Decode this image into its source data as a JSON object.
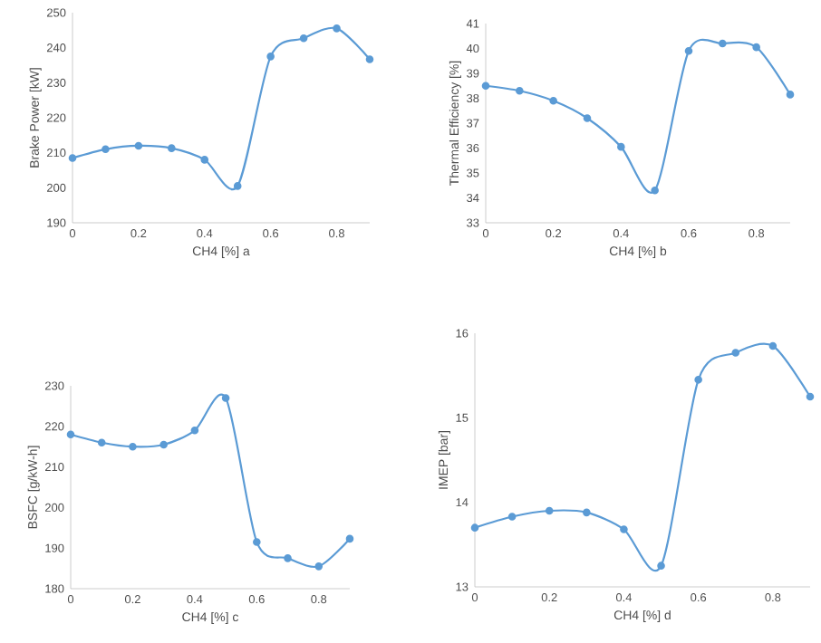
{
  "chart_data": [
    {
      "type": "line",
      "xlabel": "CH4 [%] a",
      "ylabel": "Brake Power [kW]",
      "x": [
        0,
        0.1,
        0.2,
        0.3,
        0.4,
        0.5,
        0.6,
        0.7,
        0.8,
        0.9
      ],
      "values": [
        208.5,
        211,
        212,
        211.3,
        208,
        200.5,
        237.5,
        242.7,
        245.5,
        236.7
      ],
      "color": "#5b9bd5",
      "xlim": [
        0,
        0.9
      ],
      "xticks": [
        0,
        0.2,
        0.4,
        0.6,
        0.8
      ],
      "ylim": [
        190,
        250
      ],
      "yticks": [
        190,
        200,
        210,
        220,
        230,
        240,
        250
      ],
      "marker": "circle",
      "line_style": "solid"
    },
    {
      "type": "line",
      "xlabel": "CH4 [%] b",
      "ylabel": "Thermal Efficiency [%]",
      "x": [
        0,
        0.1,
        0.2,
        0.3,
        0.4,
        0.5,
        0.6,
        0.7,
        0.8,
        0.9
      ],
      "values": [
        38.5,
        38.3,
        37.9,
        37.2,
        36.05,
        34.3,
        39.9,
        40.2,
        40.05,
        38.15
      ],
      "color": "#5b9bd5",
      "xlim": [
        0,
        0.9
      ],
      "xticks": [
        0,
        0.2,
        0.4,
        0.6,
        0.8
      ],
      "ylim": [
        33,
        41
      ],
      "yticks": [
        33,
        34,
        35,
        36,
        37,
        38,
        39,
        40,
        41
      ],
      "marker": "circle",
      "line_style": "solid"
    },
    {
      "type": "line",
      "xlabel": "CH4 [%] c",
      "ylabel": "BSFC [g/kW-h]",
      "x": [
        0,
        0.1,
        0.2,
        0.3,
        0.4,
        0.5,
        0.6,
        0.7,
        0.8,
        0.9
      ],
      "values": [
        218,
        216,
        215,
        215.5,
        219,
        227,
        191.5,
        187.5,
        185.5,
        192.3
      ],
      "color": "#5b9bd5",
      "xlim": [
        0,
        0.9
      ],
      "xticks": [
        0,
        0.2,
        0.4,
        0.6,
        0.8
      ],
      "ylim": [
        180,
        230
      ],
      "yticks": [
        180,
        190,
        200,
        210,
        220,
        230
      ],
      "marker": "circle",
      "line_style": "solid"
    },
    {
      "type": "line",
      "xlabel": "CH4 [%] d",
      "ylabel": "IMEP [bar]",
      "x": [
        0,
        0.1,
        0.2,
        0.3,
        0.4,
        0.5,
        0.6,
        0.7,
        0.8,
        0.9
      ],
      "values": [
        13.7,
        13.83,
        13.9,
        13.88,
        13.68,
        13.25,
        15.45,
        15.77,
        15.85,
        15.25
      ],
      "color": "#5b9bd5",
      "xlim": [
        0,
        0.9
      ],
      "xticks": [
        0,
        0.2,
        0.4,
        0.6,
        0.8
      ],
      "ylim": [
        13,
        16
      ],
      "yticks": [
        13,
        14,
        15,
        16
      ],
      "marker": "circle",
      "line_style": "solid"
    }
  ]
}
